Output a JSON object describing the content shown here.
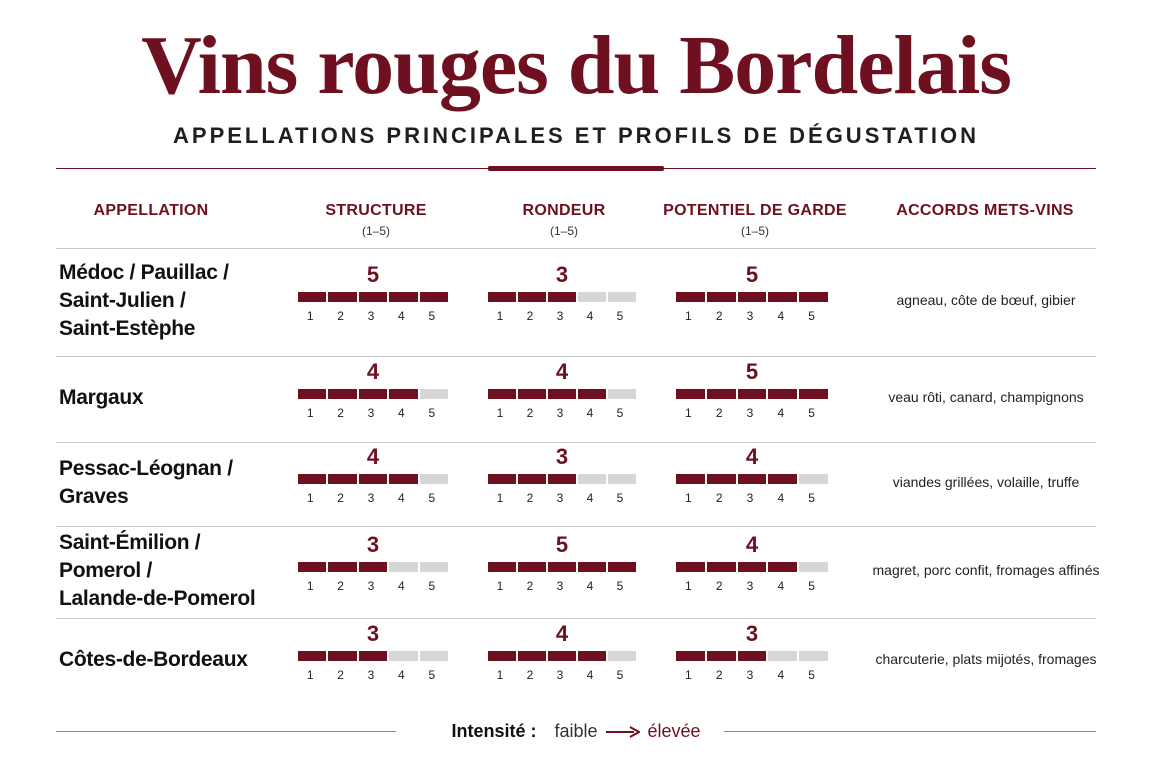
{
  "title": "Vins rouges du Bordelais",
  "subtitle": "APPELLATIONS PRINCIPALES ET PROFILS DE DÉGUSTATION",
  "headers": {
    "appellation": "APPELLATION",
    "structure": "STRUCTURE",
    "structure_scale": "(1–5)",
    "rondeur": "RONDEUR",
    "rondeur_scale": "(1–5)",
    "garde": "POTENTIEL DE GARDE",
    "garde_scale": "(1–5)",
    "accords": "ACCORDS METS-VINS"
  },
  "scale_labels": [
    "1",
    "2",
    "3",
    "4",
    "5"
  ],
  "rows": [
    {
      "appellation_lines": [
        "Médoc / Pauillac /",
        "Saint-Julien /",
        "Saint-Estèphe"
      ],
      "structure": 5,
      "rondeur": 3,
      "garde": 5,
      "accords": "agneau, côte de bœuf, gibier"
    },
    {
      "appellation_lines": [
        "Margaux"
      ],
      "structure": 4,
      "rondeur": 4,
      "garde": 5,
      "accords": "veau rôti, canard, champignons"
    },
    {
      "appellation_lines": [
        "Pessac-Léognan /",
        "Graves"
      ],
      "structure": 4,
      "rondeur": 3,
      "garde": 4,
      "accords": "viandes grillées, volaille, truffe"
    },
    {
      "appellation_lines": [
        "Saint-Émilion /",
        "Pomerol /",
        "Lalande-de-Pomerol"
      ],
      "structure": 3,
      "rondeur": 5,
      "garde": 4,
      "accords": "magret, porc confit, fromages affinés"
    },
    {
      "appellation_lines": [
        "Côtes-de-Bordeaux"
      ],
      "structure": 3,
      "rondeur": 4,
      "garde": 3,
      "accords": "charcuterie, plats mijotés, fromages"
    }
  ],
  "legend": {
    "label": "Intensité :",
    "low": "faible",
    "high": "élevée",
    "arrow_icon": "arrow-right-icon"
  },
  "colors": {
    "accent": "#6e1020",
    "bar_empty": "#d6d6d6"
  }
}
